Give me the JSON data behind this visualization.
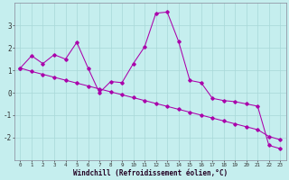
{
  "xlabel": "Windchill (Refroidissement éolien,°C)",
  "background_color": "#c5eeee",
  "grid_color": "#a8d8d8",
  "line_color": "#aa00aa",
  "hours": [
    0,
    1,
    2,
    3,
    4,
    5,
    6,
    7,
    8,
    9,
    10,
    11,
    12,
    13,
    14,
    15,
    16,
    17,
    18,
    19,
    20,
    21,
    22,
    23
  ],
  "series1_x": [
    0,
    1,
    2,
    3,
    4,
    5,
    6,
    7,
    8,
    9,
    10,
    11,
    12,
    13,
    14,
    15,
    16,
    17,
    18,
    19,
    20,
    21,
    22,
    23
  ],
  "series1_y": [
    1.1,
    1.65,
    1.3,
    1.7,
    1.5,
    2.25,
    1.1,
    0.0,
    0.5,
    0.45,
    1.3,
    2.05,
    3.55,
    3.6,
    2.3,
    0.55,
    0.45,
    -0.25,
    -0.35,
    -0.4,
    -0.5,
    -0.6,
    -2.35,
    -2.5
  ],
  "series2_x": [
    0,
    1,
    2,
    3,
    4,
    5,
    6,
    7,
    8,
    9,
    10,
    11,
    12,
    13,
    14,
    15,
    16,
    17,
    18,
    19,
    20,
    21,
    22,
    23
  ],
  "series2_y": [
    1.1,
    0.95,
    0.82,
    0.69,
    0.56,
    0.43,
    0.3,
    0.17,
    0.04,
    -0.09,
    -0.22,
    -0.35,
    -0.48,
    -0.61,
    -0.74,
    -0.87,
    -1.0,
    -1.13,
    -1.26,
    -1.39,
    -1.52,
    -1.65,
    -1.95,
    -2.1
  ],
  "ylim": [
    -3,
    4
  ],
  "yticks": [
    -2,
    -1,
    0,
    1,
    2,
    3
  ],
  "xlim": [
    -0.5,
    23.5
  ],
  "xtick_labels": [
    "0",
    "1",
    "2",
    "3",
    "4",
    "5",
    "6",
    "7",
    "8",
    "9",
    "10",
    "11",
    "12",
    "13",
    "14",
    "15",
    "16",
    "17",
    "18",
    "19",
    "20",
    "21",
    "22",
    "23"
  ]
}
